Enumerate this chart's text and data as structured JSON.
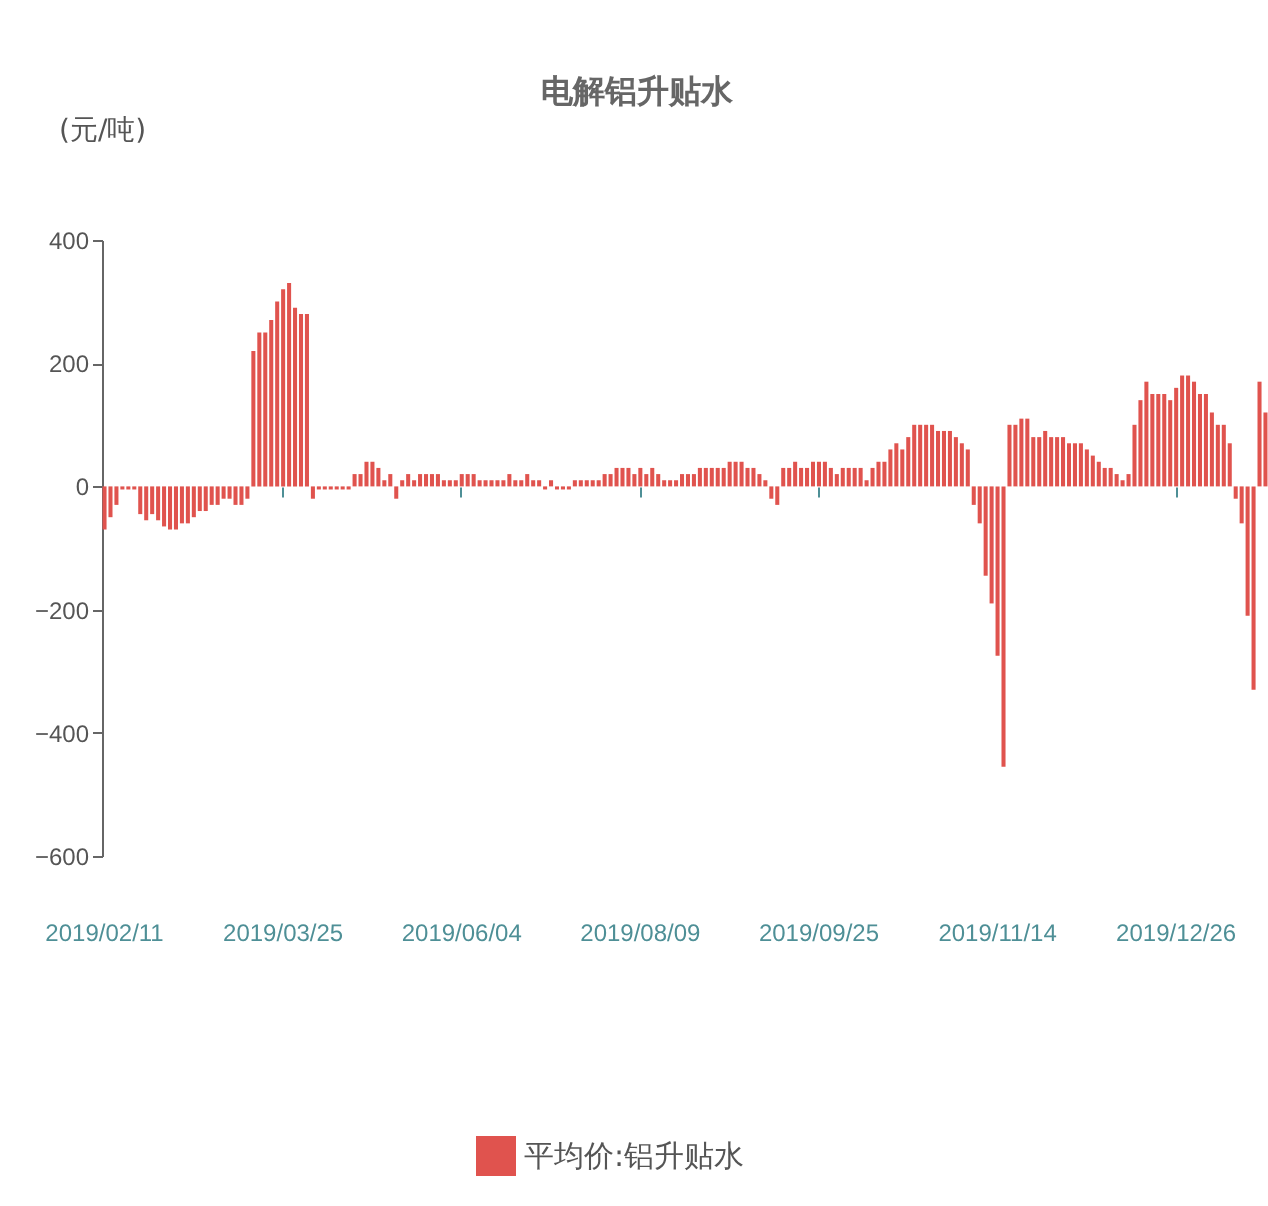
{
  "chart_data": {
    "type": "bar",
    "title": "电解铝升贴水",
    "ylabel": "(元/吨)",
    "categories": [
      "2019/02/11",
      null,
      null,
      null,
      null,
      null,
      null,
      null,
      null,
      null,
      null,
      null,
      null,
      null,
      null,
      null,
      null,
      null,
      null,
      null,
      null,
      null,
      null,
      null,
      null,
      null,
      null,
      null,
      null,
      null,
      "2019/03/25",
      null,
      null,
      null,
      null,
      null,
      null,
      null,
      null,
      null,
      null,
      null,
      null,
      null,
      null,
      null,
      null,
      null,
      null,
      null,
      null,
      null,
      null,
      null,
      null,
      null,
      null,
      null,
      null,
      null,
      "2019/06/04",
      null,
      null,
      null,
      null,
      null,
      null,
      null,
      null,
      null,
      null,
      null,
      null,
      null,
      null,
      null,
      null,
      null,
      null,
      null,
      null,
      null,
      null,
      null,
      null,
      null,
      null,
      null,
      null,
      null,
      "2019/08/09",
      null,
      null,
      null,
      null,
      null,
      null,
      null,
      null,
      null,
      null,
      null,
      null,
      null,
      null,
      null,
      null,
      null,
      null,
      null,
      null,
      null,
      null,
      null,
      null,
      null,
      null,
      null,
      null,
      null,
      "2019/09/25",
      null,
      null,
      null,
      null,
      null,
      null,
      null,
      null,
      null,
      null,
      null,
      null,
      null,
      null,
      null,
      null,
      null,
      null,
      null,
      null,
      null,
      null,
      null,
      null,
      null,
      null,
      null,
      null,
      null,
      "2019/11/14",
      null,
      null,
      null,
      null,
      null,
      null,
      null,
      null,
      null,
      null,
      null,
      null,
      null,
      null,
      null,
      null,
      null,
      null,
      null,
      null,
      null,
      null,
      null,
      null,
      null,
      null,
      null,
      null,
      null,
      "2019/12/26",
      null,
      null,
      null,
      null,
      null,
      null,
      null,
      null,
      null,
      null,
      null,
      null,
      null,
      null,
      null
    ],
    "series": [
      {
        "name": "平均价:铝升贴水",
        "color": "#e0534e",
        "values": [
          -70,
          -50,
          -30,
          -5,
          -5,
          -5,
          -45,
          -55,
          -45,
          -55,
          -65,
          -70,
          -70,
          -60,
          -60,
          -50,
          -40,
          -40,
          -30,
          -30,
          -20,
          -20,
          -30,
          -30,
          -20,
          220,
          250,
          250,
          270,
          300,
          320,
          330,
          290,
          280,
          280,
          -20,
          -5,
          -5,
          -5,
          -5,
          -5,
          -5,
          20,
          20,
          40,
          40,
          30,
          10,
          20,
          -20,
          10,
          20,
          10,
          20,
          20,
          20,
          20,
          10,
          10,
          10,
          20,
          20,
          20,
          10,
          10,
          10,
          10,
          10,
          20,
          10,
          10,
          20,
          10,
          10,
          -5,
          10,
          -5,
          -5,
          -5,
          10,
          10,
          10,
          10,
          10,
          20,
          20,
          30,
          30,
          30,
          20,
          30,
          20,
          30,
          20,
          10,
          10,
          10,
          20,
          20,
          20,
          30,
          30,
          30,
          30,
          30,
          40,
          40,
          40,
          30,
          30,
          20,
          10,
          -20,
          -30,
          30,
          30,
          40,
          30,
          30,
          40,
          40,
          40,
          30,
          20,
          30,
          30,
          30,
          30,
          10,
          30,
          40,
          40,
          60,
          70,
          60,
          80,
          100,
          100,
          100,
          100,
          90,
          90,
          90,
          80,
          70,
          60,
          -30,
          -60,
          -145,
          -190,
          -275,
          -455,
          100,
          100,
          110,
          110,
          80,
          80,
          90,
          80,
          80,
          80,
          70,
          70,
          70,
          60,
          50,
          40,
          30,
          30,
          20,
          10,
          20,
          100,
          140,
          170,
          150,
          150,
          150,
          140,
          160,
          180,
          180,
          170,
          150,
          150,
          120,
          100,
          100,
          70,
          -20,
          -60,
          -210,
          -330,
          170,
          120
        ]
      }
    ],
    "ylim": [
      -600,
      400
    ],
    "yticks": [
      -600,
      -400,
      -200,
      0,
      200,
      400
    ],
    "grid": false,
    "legend": "bottom"
  }
}
